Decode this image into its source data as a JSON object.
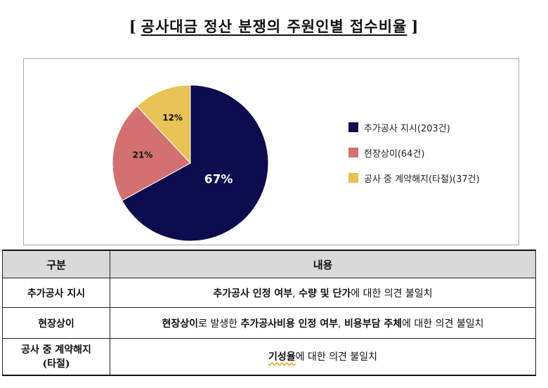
{
  "title": {
    "left_bracket": "[",
    "text": "공사대금 정산 분쟁의 주원인별 접수비율",
    "right_bracket": "]"
  },
  "chart_data": {
    "type": "pie",
    "slices": [
      {
        "label": "추가공사 지시(203건)",
        "value": 67,
        "display": "67%",
        "color": "#0c0c4e",
        "label_color": "#ffffff"
      },
      {
        "label": "현장상이(64건)",
        "value": 21,
        "display": "21%",
        "color": "#d37171",
        "label_color": "#111111"
      },
      {
        "label": "공사 중 계약해지(타절)(37건)",
        "value": 12,
        "display": "12%",
        "color": "#e9c256",
        "label_color": "#111111"
      }
    ],
    "legend_position": "right"
  },
  "table": {
    "headers": [
      "구분",
      "내용"
    ],
    "rows": [
      {
        "category": "추가공사 지시",
        "segments": [
          {
            "text": "추가공사 인정 여부",
            "bold": true
          },
          {
            "text": ", ",
            "bold": false
          },
          {
            "text": "수량 및 단가",
            "bold": true
          },
          {
            "text": "에 대한 의견 불일치",
            "bold": false
          }
        ]
      },
      {
        "category": "현장상이",
        "segments": [
          {
            "text": "현장상이",
            "bold": true
          },
          {
            "text": "로 발생한 ",
            "bold": false
          },
          {
            "text": "추가공사비용 인정 여부",
            "bold": true
          },
          {
            "text": ", ",
            "bold": false
          },
          {
            "text": "비용부담 주체",
            "bold": true
          },
          {
            "text": "에 대한 의견 불일치",
            "bold": false
          }
        ]
      },
      {
        "category_line1": "공사 중 계약해지",
        "category_line2": "(타절)",
        "segments": [
          {
            "text": "기성율",
            "bold": true,
            "wavy": true
          },
          {
            "text": "에 대한 의견 불일치",
            "bold": false
          }
        ]
      }
    ]
  }
}
